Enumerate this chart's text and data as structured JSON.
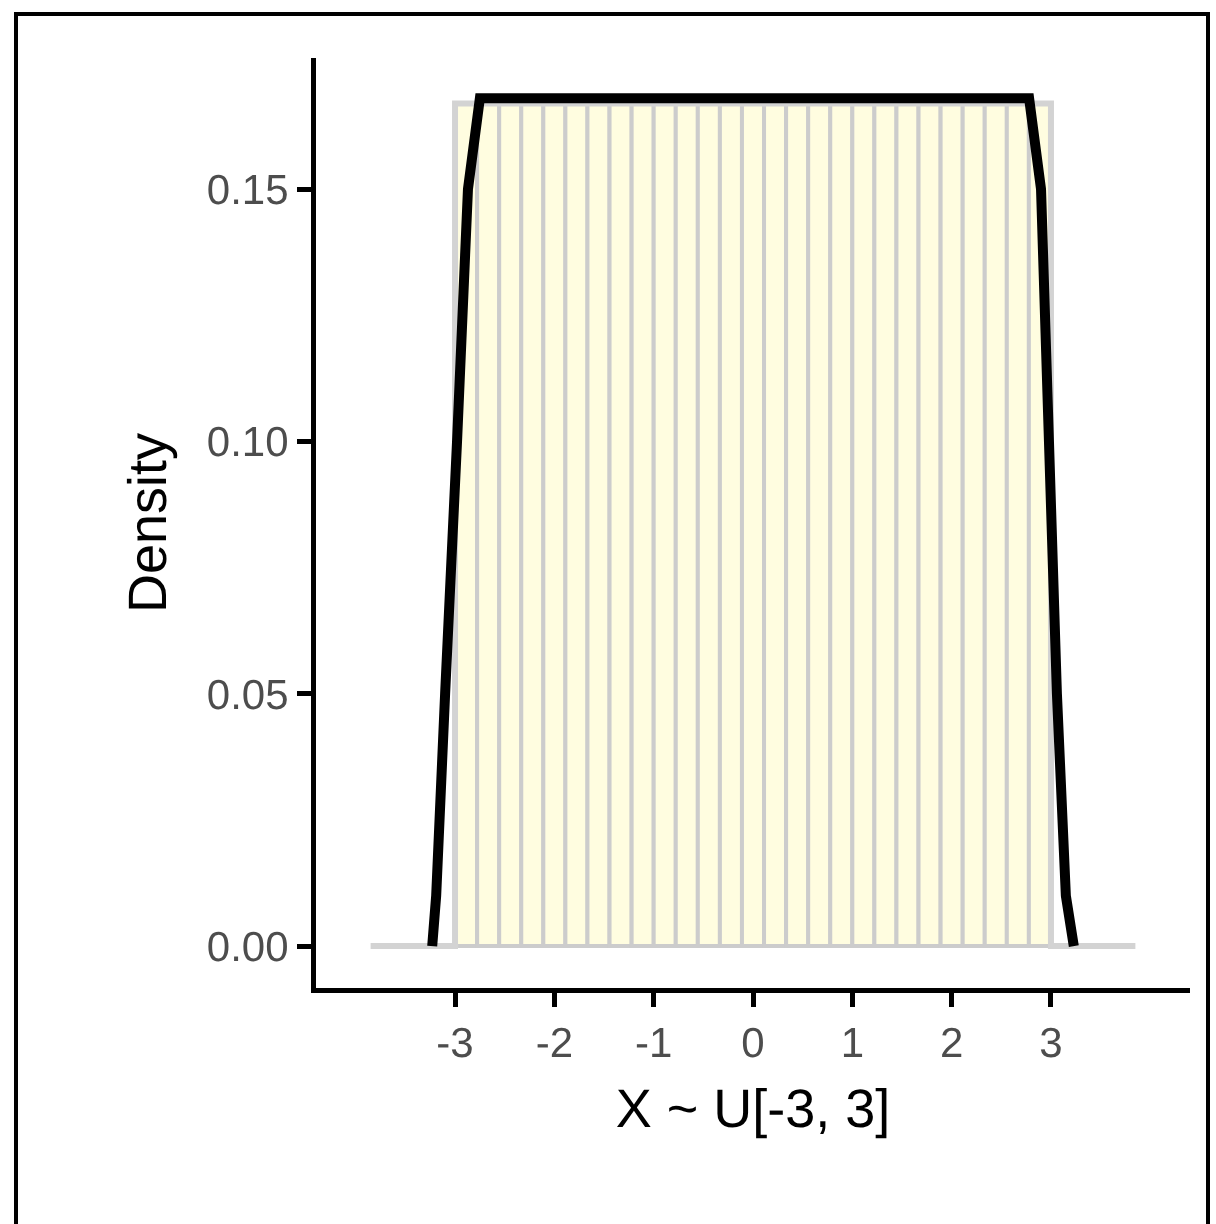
{
  "chart_data": {
    "type": "histogram",
    "xlabel": "X ~ U[-3, 3]",
    "ylabel": "Density",
    "xlim": [
      -4.4,
      4.4
    ],
    "ylim": [
      -0.0083,
      0.176
    ],
    "xticks": [
      -3,
      -2,
      -1,
      0,
      1,
      2,
      3
    ],
    "yticks": [
      {
        "value": 0,
        "label": "0.00"
      },
      {
        "value": 0.05,
        "label": "0.05"
      },
      {
        "value": 0.1,
        "label": "0.10"
      },
      {
        "value": 0.15,
        "label": "0.15"
      }
    ],
    "grid": false,
    "marker": "none",
    "series": [
      {
        "type": "line",
        "color": "#d3d3d3",
        "x": [
          -3.85,
          -3,
          -3,
          3,
          3,
          3.85
        ],
        "values": [
          0,
          0,
          0.167,
          0.167,
          0,
          0
        ]
      },
      {
        "color": "#fffde0",
        "bins": [
          -3,
          -2.7778,
          -2.5556,
          -2.3333,
          -2.1111,
          -1.8889,
          -1.6667,
          -1.4444,
          -1.2222,
          -1,
          -0.7778,
          -0.5556,
          -0.3333,
          -0.1111,
          0.1111,
          0.3333,
          0.5556,
          0.7778,
          1,
          1.2222,
          1.4444,
          1.6667,
          1.8889,
          2.1111,
          2.3333,
          2.5556,
          2.7778,
          3
        ],
        "values": [
          0.167,
          0.167,
          0.167,
          0.167,
          0.167,
          0.167,
          0.167,
          0.167,
          0.167,
          0.167,
          0.167,
          0.167,
          0.167,
          0.167,
          0.167,
          0.167,
          0.167,
          0.167,
          0.167,
          0.167,
          0.167,
          0.167,
          0.167,
          0.167,
          0.167,
          0.167,
          0.167
        ]
      },
      {
        "type": "line",
        "color": "#000000",
        "x": [
          -3.23,
          -3.19,
          -3.1,
          -2.98,
          -2.87,
          -2.75,
          2.78,
          2.9,
          2.98,
          3.06,
          3.15,
          3.23
        ],
        "values": [
          0,
          0.01,
          0.05,
          0.1,
          0.15,
          0.168,
          0.168,
          0.15,
          0.1,
          0.05,
          0.01,
          0
        ]
      }
    ]
  }
}
